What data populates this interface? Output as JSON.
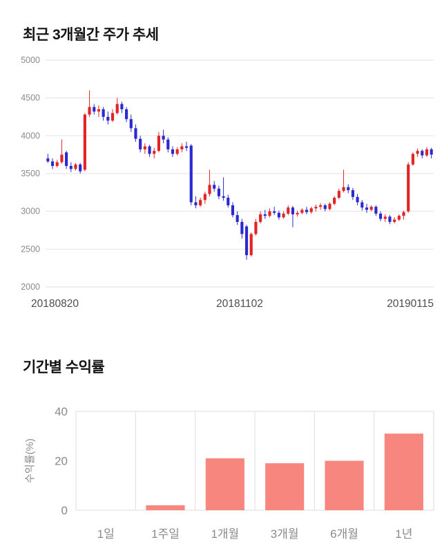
{
  "price_section": {
    "title": "최근 3개월간 주가 추세"
  },
  "returns_section": {
    "title": "기간별 수익률"
  },
  "chart_data": [
    {
      "type": "candlestick",
      "title": "최근 3개월간 주가 추세",
      "ylim": [
        2000,
        5000
      ],
      "yticks": [
        2000,
        2500,
        3000,
        3500,
        4000,
        4500,
        5000
      ],
      "x_axis_labels": [
        "20180820",
        "20181102",
        "20190115"
      ],
      "grid": true,
      "colors": {
        "up": "#e22424",
        "down": "#2a2ad0",
        "grid": "#e2e2e2",
        "axis_text": "#8a8a8a",
        "date_text": "#4d4d4d"
      },
      "candles": [
        [
          3700,
          3760,
          3640,
          3660
        ],
        [
          3660,
          3700,
          3560,
          3600
        ],
        [
          3600,
          3680,
          3580,
          3650
        ],
        [
          3650,
          3950,
          3630,
          3750
        ],
        [
          3780,
          3800,
          3560,
          3600
        ],
        [
          3600,
          3650,
          3520,
          3560
        ],
        [
          3560,
          3640,
          3540,
          3620
        ],
        [
          3620,
          3640,
          3500,
          3530
        ],
        [
          3550,
          4300,
          3530,
          4280
        ],
        [
          4280,
          4600,
          4250,
          4380
        ],
        [
          4380,
          4420,
          4280,
          4320
        ],
        [
          4320,
          4400,
          4250,
          4350
        ],
        [
          4350,
          4380,
          4200,
          4250
        ],
        [
          4250,
          4320,
          4150,
          4200
        ],
        [
          4200,
          4350,
          4180,
          4300
        ],
        [
          4300,
          4500,
          4280,
          4420
        ],
        [
          4420,
          4450,
          4300,
          4350
        ],
        [
          4350,
          4380,
          4180,
          4220
        ],
        [
          4220,
          4280,
          4050,
          4100
        ],
        [
          4100,
          4150,
          3920,
          3960
        ],
        [
          3960,
          4000,
          3780,
          3820
        ],
        [
          3820,
          3900,
          3760,
          3860
        ],
        [
          3860,
          3880,
          3720,
          3760
        ],
        [
          3760,
          3840,
          3700,
          3800
        ],
        [
          3800,
          4050,
          3780,
          4000
        ],
        [
          4000,
          4080,
          3900,
          3950
        ],
        [
          3950,
          3980,
          3780,
          3820
        ],
        [
          3820,
          3860,
          3720,
          3760
        ],
        [
          3760,
          3850,
          3740,
          3820
        ],
        [
          3820,
          3900,
          3780,
          3860
        ],
        [
          3860,
          3920,
          3800,
          3840
        ],
        [
          3870,
          3890,
          3080,
          3120
        ],
        [
          3120,
          3200,
          3040,
          3080
        ],
        [
          3080,
          3180,
          3060,
          3150
        ],
        [
          3150,
          3260,
          3100,
          3230
        ],
        [
          3230,
          3550,
          3200,
          3350
        ],
        [
          3350,
          3400,
          3260,
          3300
        ],
        [
          3300,
          3340,
          3160,
          3200
        ],
        [
          3200,
          3450,
          3140,
          3180
        ],
        [
          3180,
          3220,
          3050,
          3080
        ],
        [
          3080,
          3120,
          2920,
          2950
        ],
        [
          2950,
          3000,
          2820,
          2860
        ],
        [
          2860,
          2900,
          2640,
          2700
        ],
        [
          2800,
          2820,
          2360,
          2420
        ],
        [
          2420,
          2720,
          2400,
          2700
        ],
        [
          2700,
          2900,
          2680,
          2860
        ],
        [
          2860,
          3000,
          2840,
          2960
        ],
        [
          2960,
          3020,
          2900,
          2940
        ],
        [
          2940,
          3040,
          2920,
          3000
        ],
        [
          3000,
          3060,
          2950,
          2980
        ],
        [
          2980,
          3010,
          2890,
          2920
        ],
        [
          2920,
          3000,
          2900,
          2970
        ],
        [
          2970,
          3080,
          2950,
          3050
        ],
        [
          3050,
          3070,
          2790,
          2960
        ],
        [
          2960,
          3010,
          2930,
          2980
        ],
        [
          2980,
          3040,
          2960,
          3020
        ],
        [
          3020,
          3060,
          2960,
          2990
        ],
        [
          2990,
          3060,
          2970,
          3040
        ],
        [
          3040,
          3090,
          3000,
          3060
        ],
        [
          3060,
          3110,
          3020,
          3080
        ],
        [
          3080,
          3100,
          3000,
          3030
        ],
        [
          3030,
          3120,
          3010,
          3100
        ],
        [
          3100,
          3200,
          3080,
          3180
        ],
        [
          3180,
          3300,
          3160,
          3270
        ],
        [
          3270,
          3550,
          3250,
          3320
        ],
        [
          3320,
          3360,
          3240,
          3280
        ],
        [
          3280,
          3310,
          3150,
          3190
        ],
        [
          3190,
          3230,
          3080,
          3120
        ],
        [
          3120,
          3150,
          3010,
          3050
        ],
        [
          3050,
          3100,
          2980,
          3020
        ],
        [
          3020,
          3080,
          3000,
          3060
        ],
        [
          3060,
          3080,
          2940,
          2970
        ],
        [
          2970,
          3000,
          2870,
          2900
        ],
        [
          2900,
          2960,
          2860,
          2930
        ],
        [
          2930,
          2950,
          2830,
          2860
        ],
        [
          2860,
          2920,
          2840,
          2890
        ],
        [
          2890,
          2960,
          2870,
          2940
        ],
        [
          2940,
          3010,
          2890,
          2990
        ],
        [
          3000,
          3650,
          2980,
          3620
        ],
        [
          3620,
          3780,
          3600,
          3760
        ],
        [
          3760,
          3830,
          3720,
          3800
        ],
        [
          3800,
          3820,
          3700,
          3740
        ],
        [
          3740,
          3850,
          3720,
          3820
        ],
        [
          3820,
          3840,
          3700,
          3750
        ]
      ]
    },
    {
      "type": "bar",
      "title": "기간별 수익률",
      "categories": [
        "1일",
        "1주일",
        "1개월",
        "3개월",
        "6개월",
        "1년"
      ],
      "values": [
        0,
        2,
        21,
        19,
        20,
        31
      ],
      "ylabel": "수익률(%)",
      "yticks": [
        0,
        20,
        40
      ],
      "hgrid_at": [
        40,
        0
      ],
      "ylim": [
        0,
        40
      ],
      "bar_color": "#f6867e",
      "grid_color": "#dddddd",
      "axis_text_color": "#8a8a8a"
    }
  ]
}
